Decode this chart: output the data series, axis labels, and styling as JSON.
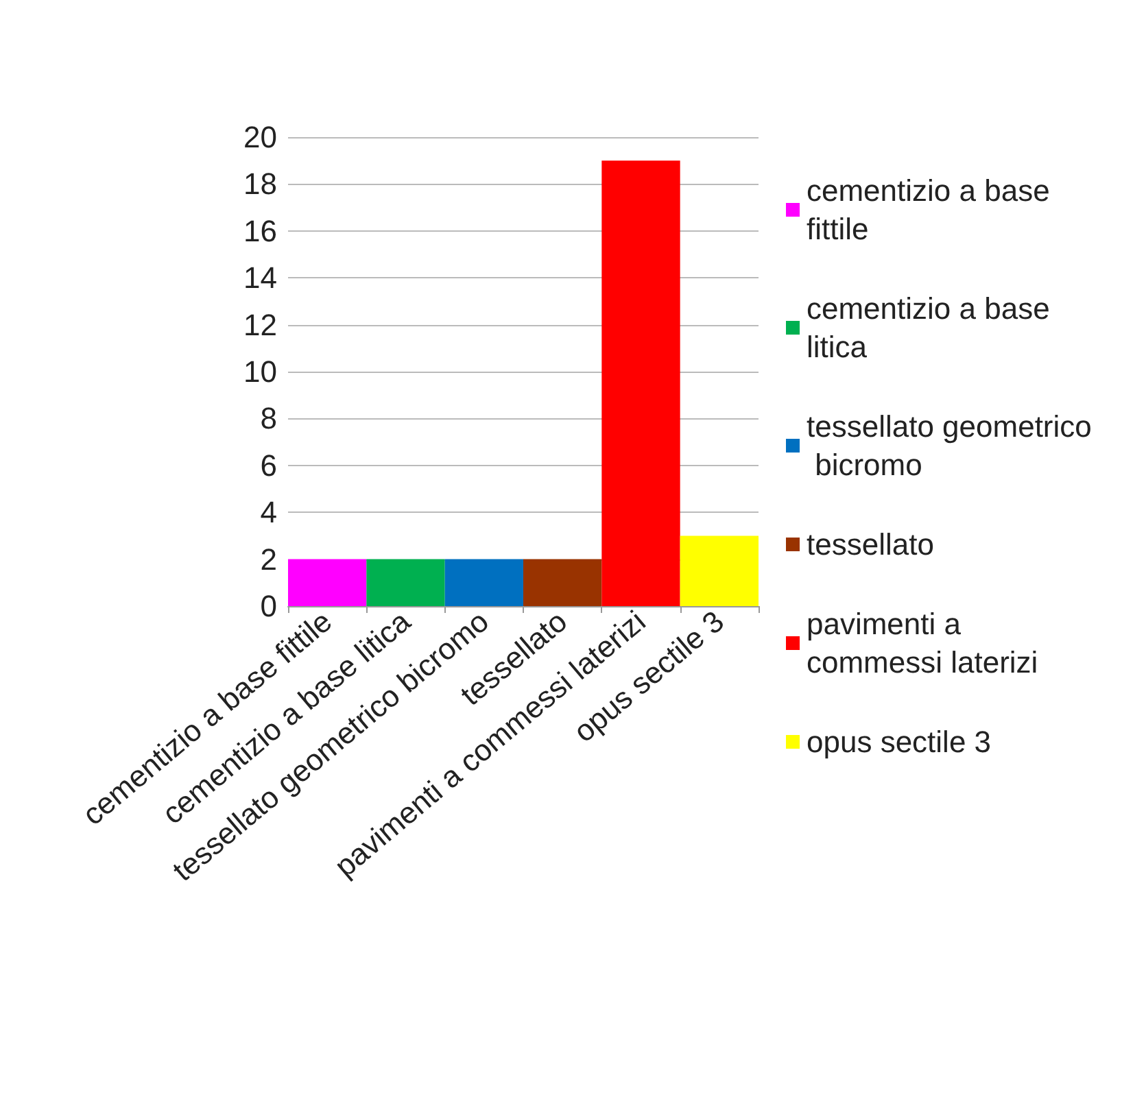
{
  "chart_data": {
    "type": "bar",
    "categories": [
      "cementizio a base fittile",
      "cementizio a base litica",
      "tessellato geometrico bicromo",
      "tessellato",
      "pavimenti a commessi laterizi",
      "opus sectile 3"
    ],
    "series": [
      {
        "name": "cementizio a base fittile",
        "color": "#ff00ff",
        "values": [
          2,
          null,
          null,
          null,
          null,
          null
        ]
      },
      {
        "name": "cementizio a base litica",
        "color": "#00b050",
        "values": [
          null,
          2,
          null,
          null,
          null,
          null
        ]
      },
      {
        "name": "tessellato geometrico bicromo",
        "color": "#0070c0",
        "values": [
          null,
          null,
          2,
          null,
          null,
          null
        ]
      },
      {
        "name": "tessellato",
        "color": "#993300",
        "values": [
          null,
          null,
          null,
          2,
          null,
          null
        ]
      },
      {
        "name": "pavimenti a commessi laterizi",
        "color": "#ff0000",
        "values": [
          null,
          null,
          null,
          null,
          19,
          null
        ]
      },
      {
        "name": "opus sectile 3",
        "color": "#ffff00",
        "values": [
          null,
          null,
          null,
          null,
          null,
          3
        ]
      }
    ],
    "ylim": [
      0,
      20
    ],
    "yticks": [
      0,
      2,
      4,
      6,
      8,
      10,
      12,
      14,
      16,
      18,
      20
    ],
    "grid": "y",
    "legend": "right"
  }
}
